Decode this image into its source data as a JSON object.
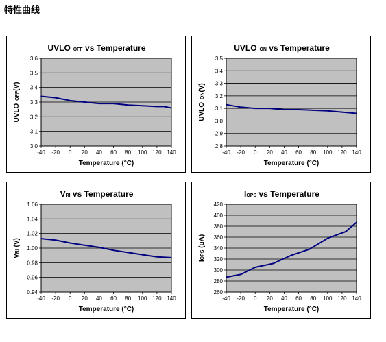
{
  "page": {
    "heading": "特性曲线"
  },
  "colors": {
    "plot_bg": "#c0c0c0",
    "line": "#000080",
    "grid": "#000000"
  },
  "chart_data": [
    {
      "type": "line",
      "title_main": "UVLO",
      "title_sub": "_OFF",
      "title_rest": " vs Temperature",
      "ylabel_main": "UVLO",
      "ylabel_sub": "_OFF",
      "ylabel_rest": "(V)",
      "xlabel": "Temperature (°C)",
      "xlim": [
        -40,
        140
      ],
      "ylim": [
        3.0,
        3.6
      ],
      "x_ticks": [
        "-40",
        "-20",
        "0",
        "20",
        "40",
        "60",
        "80",
        "100",
        "120",
        "140"
      ],
      "y_ticks": [
        "3.6",
        "3.5",
        "3.4",
        "3.3",
        "3.2",
        "3.1",
        "3.0"
      ],
      "grid": true,
      "series": [
        {
          "x": [
            -40,
            -20,
            0,
            20,
            40,
            60,
            80,
            100,
            120,
            130,
            140
          ],
          "y": [
            3.34,
            3.33,
            3.31,
            3.3,
            3.29,
            3.29,
            3.28,
            3.275,
            3.27,
            3.27,
            3.26
          ]
        }
      ]
    },
    {
      "type": "line",
      "title_main": "UVLO",
      "title_sub": "_ON",
      "title_rest": " vs Temperature",
      "ylabel_main": "UVLO",
      "ylabel_sub": "_ON",
      "ylabel_rest": "(V)",
      "xlabel": "Temperature (°C)",
      "xlim": [
        -40,
        140
      ],
      "ylim": [
        2.8,
        3.5
      ],
      "x_ticks": [
        "-40",
        "-20",
        "0",
        "20",
        "40",
        "60",
        "80",
        "100",
        "120",
        "140"
      ],
      "y_ticks": [
        "3.5",
        "3.4",
        "3.3",
        "3.2",
        "3.1",
        "3.0",
        "2.9",
        "2.8"
      ],
      "grid": true,
      "series": [
        {
          "x": [
            -40,
            -20,
            0,
            20,
            40,
            60,
            80,
            100,
            120,
            140
          ],
          "y": [
            3.13,
            3.11,
            3.1,
            3.1,
            3.09,
            3.09,
            3.085,
            3.08,
            3.07,
            3.06
          ]
        }
      ]
    },
    {
      "type": "line",
      "title_main": "V",
      "title_sub": "RI",
      "title_rest": " vs Temperature",
      "ylabel_main": "V",
      "ylabel_sub": "RI",
      "ylabel_rest": " (V)",
      "xlabel": "Temperature (°C)",
      "xlim": [
        -40,
        140
      ],
      "ylim": [
        0.94,
        1.06
      ],
      "x_ticks": [
        "-40",
        "-20",
        "0",
        "20",
        "40",
        "60",
        "80",
        "100",
        "120",
        "140"
      ],
      "y_ticks": [
        "1.06",
        "1.04",
        "1.02",
        "1.00",
        "0.98",
        "0.96",
        "0.94"
      ],
      "grid": true,
      "series": [
        {
          "x": [
            -40,
            -20,
            0,
            20,
            40,
            60,
            80,
            100,
            120,
            140
          ],
          "y": [
            1.013,
            1.011,
            1.007,
            1.004,
            1.001,
            0.997,
            0.994,
            0.991,
            0.988,
            0.987
          ]
        }
      ]
    },
    {
      "type": "line",
      "title_main": "I",
      "title_sub": "OPS",
      "title_rest": " vs Temperature",
      "ylabel_main": "I",
      "ylabel_sub": "OPS",
      "ylabel_rest": " (uA)",
      "xlabel": "Temperature (°C)",
      "xlim": [
        -40,
        140
      ],
      "ylim": [
        260,
        420
      ],
      "x_ticks": [
        "-40",
        "-20",
        "0",
        "20",
        "40",
        "60",
        "80",
        "100",
        "120",
        "140"
      ],
      "y_ticks": [
        "420",
        "400",
        "380",
        "360",
        "340",
        "320",
        "300",
        "280",
        "260"
      ],
      "grid": true,
      "series": [
        {
          "x": [
            -40,
            -20,
            0,
            25,
            50,
            75,
            100,
            125,
            140
          ],
          "y": [
            287,
            292,
            305,
            312,
            327,
            338,
            358,
            370,
            387
          ]
        }
      ]
    }
  ]
}
